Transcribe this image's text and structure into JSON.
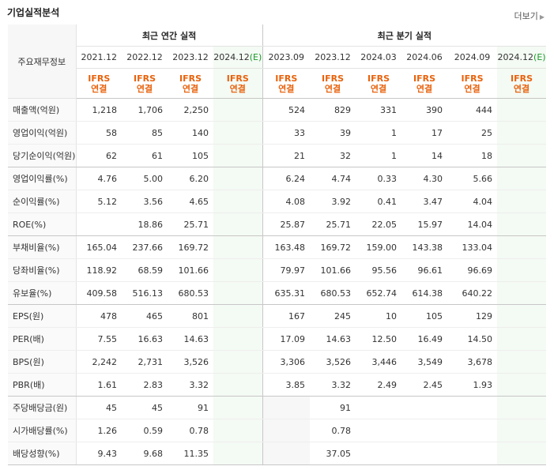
{
  "section_title": "기업실적분석",
  "more_label": "더보기",
  "row_header_label": "주요재무정보",
  "groups": {
    "annual": "최근 연간 실적",
    "quarterly": "최근 분기 실적"
  },
  "periods": [
    {
      "label": "2021.12",
      "est": false
    },
    {
      "label": "2022.12",
      "est": false
    },
    {
      "label": "2023.12",
      "est": false
    },
    {
      "label": "2024.12",
      "est": true
    },
    {
      "label": "2023.09",
      "est": false
    },
    {
      "label": "2023.12",
      "est": false
    },
    {
      "label": "2024.03",
      "est": false
    },
    {
      "label": "2024.06",
      "est": false
    },
    {
      "label": "2024.09",
      "est": false
    },
    {
      "label": "2024.12",
      "est": true
    }
  ],
  "est_suffix": "(E)",
  "basis_line1": "IFRS",
  "basis_line2": "연결",
  "rows": [
    {
      "label": "매출액(억원)",
      "values": [
        "1,218",
        "1,706",
        "2,250",
        "",
        "524",
        "829",
        "331",
        "390",
        "444",
        ""
      ]
    },
    {
      "label": "영업이익(억원)",
      "values": [
        "58",
        "85",
        "140",
        "",
        "33",
        "39",
        "1",
        "17",
        "25",
        ""
      ]
    },
    {
      "label": "당기순이익(억원)",
      "values": [
        "62",
        "61",
        "105",
        "",
        "21",
        "32",
        "1",
        "14",
        "18",
        ""
      ],
      "group_end": true
    },
    {
      "label": "영업이익률(%)",
      "values": [
        "4.76",
        "5.00",
        "6.20",
        "",
        "6.24",
        "4.74",
        "0.33",
        "4.30",
        "5.66",
        ""
      ]
    },
    {
      "label": "순이익률(%)",
      "values": [
        "5.12",
        "3.56",
        "4.65",
        "",
        "4.08",
        "3.92",
        "0.41",
        "3.47",
        "4.04",
        ""
      ]
    },
    {
      "label": "ROE(%)",
      "values": [
        "",
        "18.86",
        "25.71",
        "",
        "25.87",
        "25.71",
        "22.05",
        "15.97",
        "14.04",
        ""
      ],
      "group_end": true
    },
    {
      "label": "부채비율(%)",
      "values": [
        "165.04",
        "237.66",
        "169.72",
        "",
        "163.48",
        "169.72",
        "159.00",
        "143.38",
        "133.04",
        ""
      ]
    },
    {
      "label": "당좌비율(%)",
      "values": [
        "118.92",
        "68.59",
        "101.66",
        "",
        "79.97",
        "101.66",
        "95.56",
        "96.61",
        "96.69",
        ""
      ]
    },
    {
      "label": "유보율(%)",
      "values": [
        "409.58",
        "516.13",
        "680.53",
        "",
        "635.31",
        "680.53",
        "652.74",
        "614.38",
        "640.22",
        ""
      ],
      "group_end": true
    },
    {
      "label": "EPS(원)",
      "values": [
        "478",
        "465",
        "801",
        "",
        "167",
        "245",
        "10",
        "105",
        "129",
        ""
      ]
    },
    {
      "label": "PER(배)",
      "values": [
        "7.55",
        "16.63",
        "14.63",
        "",
        "17.09",
        "14.63",
        "12.50",
        "16.49",
        "14.50",
        ""
      ]
    },
    {
      "label": "BPS(원)",
      "values": [
        "2,242",
        "2,731",
        "3,526",
        "",
        "3,306",
        "3,526",
        "3,446",
        "3,549",
        "3,678",
        ""
      ]
    },
    {
      "label": "PBR(배)",
      "values": [
        "1.61",
        "2.83",
        "3.32",
        "",
        "3.85",
        "3.32",
        "2.49",
        "2.45",
        "1.93",
        ""
      ],
      "group_end": true
    },
    {
      "label": "주당배당금(원)",
      "values": [
        "45",
        "45",
        "91",
        "",
        "",
        "91",
        "",
        "",
        "",
        ""
      ]
    },
    {
      "label": "시가배당률(%)",
      "values": [
        "1.26",
        "0.59",
        "0.78",
        "",
        "",
        "0.78",
        "",
        "",
        "",
        ""
      ]
    },
    {
      "label": "배당성향(%)",
      "values": [
        "9.43",
        "9.68",
        "11.35",
        "",
        "",
        "37.05",
        "",
        "",
        "",
        ""
      ],
      "last": true
    }
  ]
}
